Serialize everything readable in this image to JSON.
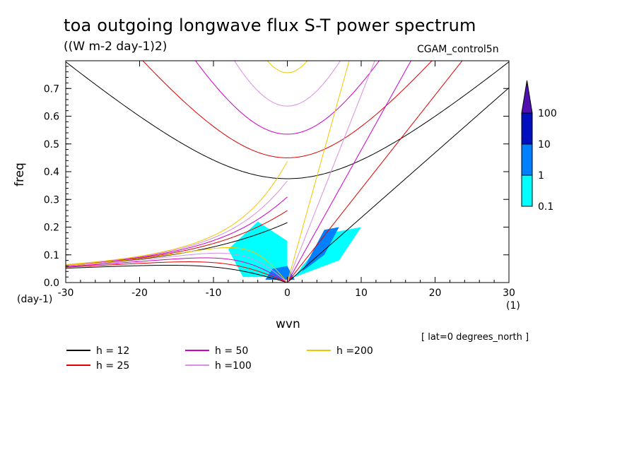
{
  "header": {
    "title": "toa outgoing longwave flux S-T power spectrum",
    "units": "((W m-2 day-1)2)",
    "case_name": "CGAM_control5n",
    "latitude_note": "[ lat=0 degrees_north ]"
  },
  "colors": {
    "fill_levels": [
      "#00ffff",
      "#0080ff",
      "#0010c0",
      "#5010b0"
    ],
    "h12": "#000000",
    "h25": "#e00000",
    "h50": "#d000c8",
    "h100": "#d890e0",
    "h200": "#f0c800"
  },
  "chart_data": {
    "type": "heatmap",
    "xlabel": "wvn",
    "xunits": "(1)",
    "ylabel": "freq",
    "yunits": "(day-1)",
    "xlim": [
      -30,
      30
    ],
    "ylim": [
      0,
      0.8
    ],
    "xticks": [
      "-30",
      "-20",
      "-10",
      "0",
      "10",
      "20",
      "30"
    ],
    "yticks": [
      "0.0",
      "0.1",
      "0.2",
      "0.3",
      "0.4",
      "0.5",
      "0.6",
      "0.7"
    ],
    "colorbar": {
      "levels": [
        "0.1",
        "1",
        "10",
        "100"
      ]
    },
    "legend": [
      {
        "label": "h = 12",
        "key": "h12"
      },
      {
        "label": "h = 25",
        "key": "h25"
      },
      {
        "label": "h = 50",
        "key": "h50"
      },
      {
        "label": "h =100",
        "key": "h100"
      },
      {
        "label": "h =200",
        "key": "h200"
      }
    ],
    "dispersion_h": [
      12,
      25,
      50,
      100,
      200
    ],
    "dispersion_curves": [
      "eastward inertio-gravity",
      "westward inertio-gravity",
      "kelvin",
      "mixed rossby-gravity"
    ],
    "power_regions": [
      {
        "level": 1,
        "points": [
          [
            -6,
            0.02
          ],
          [
            0,
            0.02
          ],
          [
            0,
            0.15
          ],
          [
            -4,
            0.22
          ],
          [
            -8,
            0.12
          ]
        ]
      },
      {
        "level": 1,
        "points": [
          [
            1,
            0.02
          ],
          [
            7,
            0.08
          ],
          [
            10,
            0.2
          ],
          [
            6,
            0.18
          ],
          [
            2,
            0.06
          ]
        ]
      },
      {
        "level": 2,
        "points": [
          [
            -3,
            0.01
          ],
          [
            1,
            0.01
          ],
          [
            0,
            0.06
          ],
          [
            -2,
            0.05
          ]
        ]
      },
      {
        "level": 2,
        "points": [
          [
            2,
            0.04
          ],
          [
            5,
            0.1
          ],
          [
            7,
            0.2
          ],
          [
            5,
            0.19
          ],
          [
            3,
            0.09
          ]
        ]
      }
    ]
  }
}
